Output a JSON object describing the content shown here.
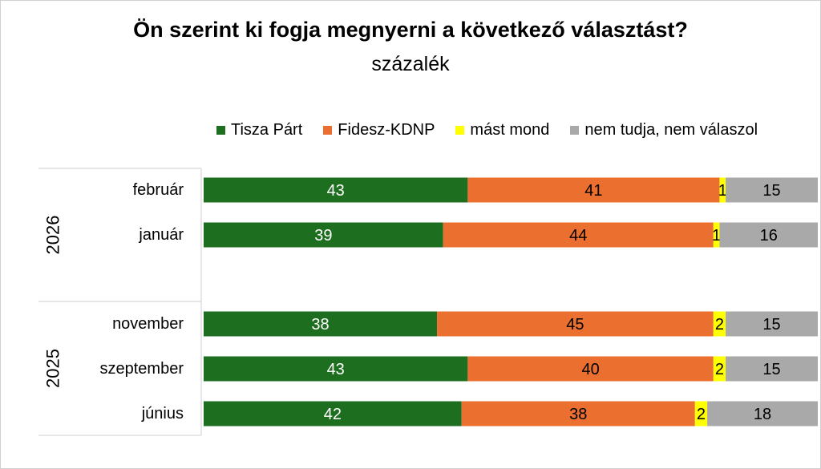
{
  "chart_data": {
    "type": "bar",
    "orientation": "horizontal",
    "stacked": true,
    "title": "Ön szerint ki fogja megnyerni a következő választást?",
    "subtitle": "százalék",
    "groups": [
      {
        "label": "2026",
        "categories": [
          "február",
          "január"
        ]
      },
      {
        "label": "2025",
        "categories": [
          "november",
          "szeptember",
          "június"
        ]
      }
    ],
    "categories": [
      "február",
      "január",
      "november",
      "szeptember",
      "június"
    ],
    "series": [
      {
        "name": "Tisza Párt",
        "color": "#1e6e1f",
        "label_color": "#ffffff",
        "values": [
          43,
          39,
          38,
          43,
          42
        ]
      },
      {
        "name": "Fidesz-KDNP",
        "color": "#eb6f2f",
        "label_color": "#000000",
        "values": [
          41,
          44,
          45,
          40,
          38
        ]
      },
      {
        "name": "mást mond",
        "color": "#ffff00",
        "label_color": "#000000",
        "values": [
          1,
          1,
          2,
          2,
          2
        ]
      },
      {
        "name": "nem tudja, nem válaszol",
        "color": "#a9a9a9",
        "label_color": "#000000",
        "values": [
          15,
          16,
          15,
          15,
          18
        ]
      }
    ],
    "xlim": [
      0,
      100
    ],
    "legend_position": "top"
  }
}
